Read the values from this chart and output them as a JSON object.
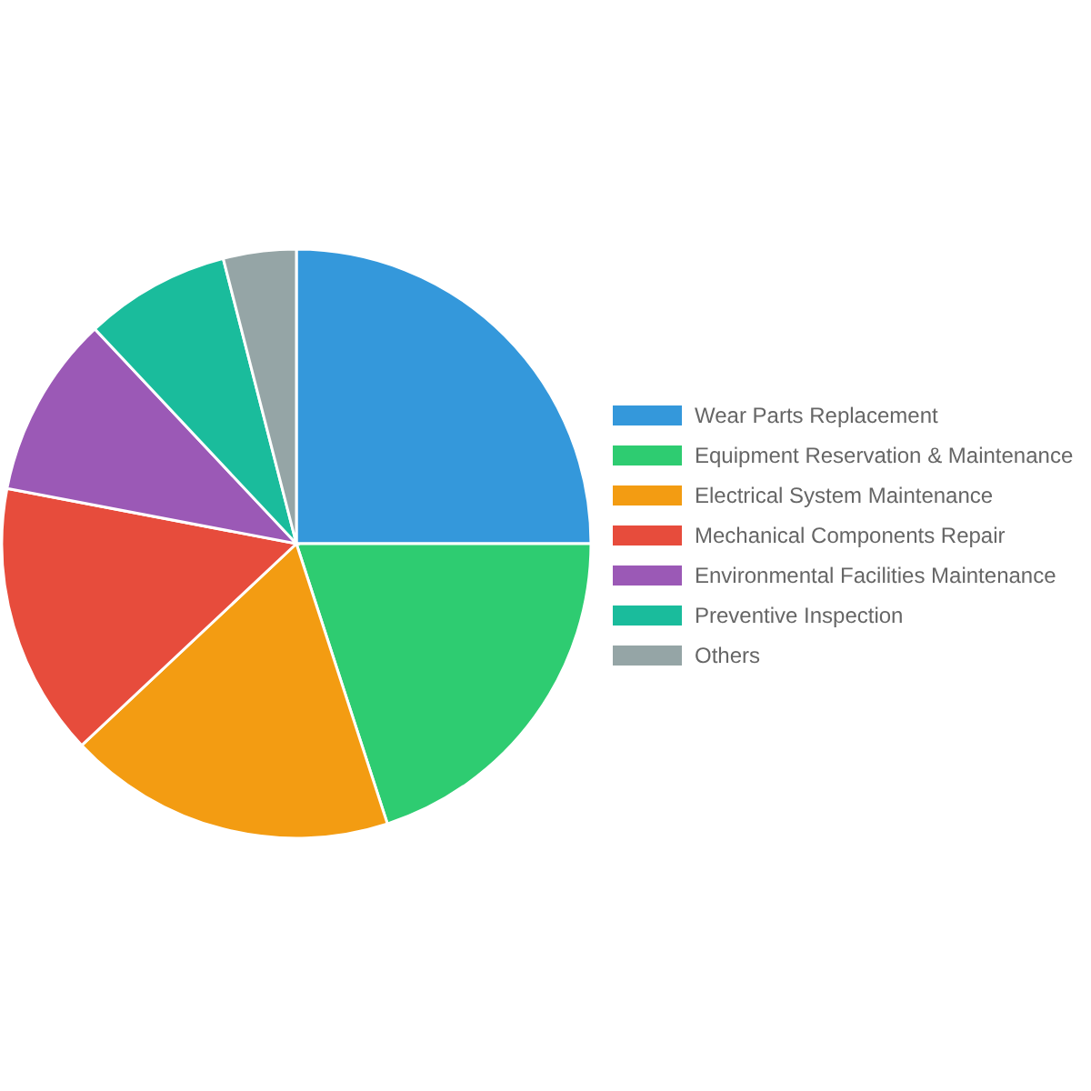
{
  "chart_data": {
    "type": "pie",
    "categories": [
      "Wear Parts Replacement",
      "Equipment Reservation & Maintenance",
      "Electrical System Maintenance",
      "Mechanical Components Repair",
      "Environmental Facilities Maintenance",
      "Preventive Inspection",
      "Others"
    ],
    "values": [
      25,
      20,
      18,
      15,
      10,
      8,
      4
    ],
    "colors": [
      "#3498db",
      "#2ecc71",
      "#f39c12",
      "#e74c3c",
      "#9b59b6",
      "#1abc9c",
      "#95a5a6"
    ],
    "legend": "right"
  }
}
